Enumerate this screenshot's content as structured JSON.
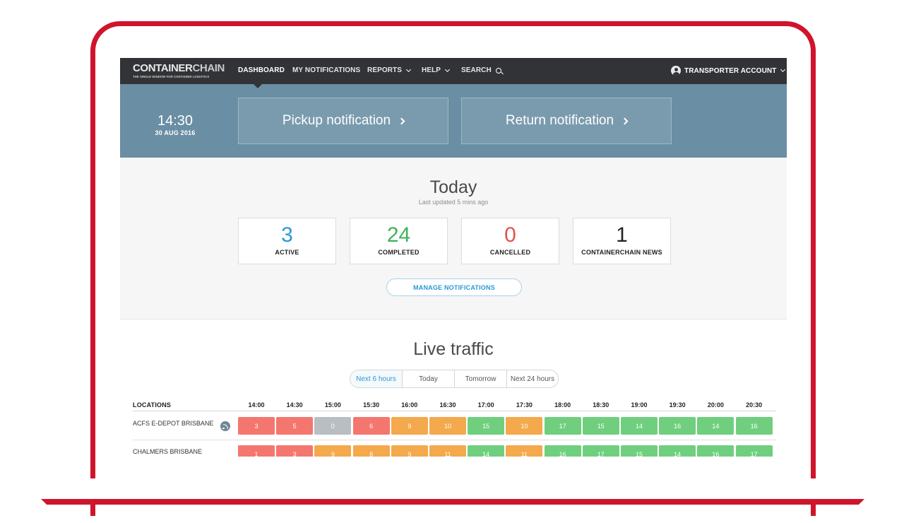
{
  "nav": {
    "logo_main": "CONTAINERCHAIN",
    "logo_main_a": "CONTAINER",
    "logo_main_b": "CHAIN",
    "logo_tagline": "THE SINGLE WINDOW FOR CONTAINER LOGISTICS",
    "items": [
      {
        "label": "DASHBOARD",
        "active": true
      },
      {
        "label": "MY NOTIFICATIONS"
      },
      {
        "label": "REPORTS",
        "icon": "chevron-down-icon"
      },
      {
        "label": "HELP",
        "icon": "chevron-down-icon"
      },
      {
        "label": "SEARCH",
        "icon": "search-icon"
      }
    ],
    "account": {
      "label": "TRANSPORTER ACCOUNT",
      "icon": "user-icon"
    }
  },
  "hero": {
    "time": "14:30",
    "date": "30 AUG 2016",
    "pickup_label": "Pickup notification",
    "return_label": "Return notification"
  },
  "today": {
    "title": "Today",
    "subtitle": "Last updated 5 mins ago",
    "stats": [
      {
        "value": "3",
        "label": "ACTIVE",
        "color": "#2b98d4"
      },
      {
        "value": "24",
        "label": "COMPLETED",
        "color": "#3db35b"
      },
      {
        "value": "0",
        "label": "CANCELLED",
        "color": "#e2534b"
      },
      {
        "value": "1",
        "label": "CONTAINERCHAIN NEWS",
        "color": "#222222"
      }
    ],
    "manage_label": "MANAGE NOTIFICATIONS"
  },
  "traffic": {
    "title": "Live traffic",
    "tabs": [
      "Next 6 hours",
      "Today",
      "Tomorrow",
      "Next 24 hours"
    ],
    "selected_tab": "Next 6 hours",
    "locations_header": "LOCATIONS",
    "times": [
      "14:00",
      "14:30",
      "15:00",
      "15:30",
      "16:00",
      "16:30",
      "17:00",
      "17:30",
      "18:00",
      "18:30",
      "19:00",
      "19:30",
      "20:00",
      "20:30"
    ],
    "rows": [
      {
        "location": "ACFS E-DEPOT BRISBANE",
        "icon": "rss-icon",
        "cells": [
          {
            "value": "3",
            "status": "red"
          },
          {
            "value": "5",
            "status": "red"
          },
          {
            "value": "0",
            "status": "gray"
          },
          {
            "value": "6",
            "status": "red"
          },
          {
            "value": "9",
            "status": "orange"
          },
          {
            "value": "10",
            "status": "orange"
          },
          {
            "value": "15",
            "status": "green"
          },
          {
            "value": "10",
            "status": "orange"
          },
          {
            "value": "17",
            "status": "green"
          },
          {
            "value": "15",
            "status": "green"
          },
          {
            "value": "14",
            "status": "green"
          },
          {
            "value": "16",
            "status": "green"
          },
          {
            "value": "14",
            "status": "green"
          },
          {
            "value": "16",
            "status": "green"
          }
        ]
      },
      {
        "location": "CHALMERS BRISBANE",
        "cells": [
          {
            "value": "1",
            "status": "red"
          },
          {
            "value": "3",
            "status": "red"
          },
          {
            "value": "9",
            "status": "orange"
          },
          {
            "value": "8",
            "status": "orange"
          },
          {
            "value": "9",
            "status": "orange"
          },
          {
            "value": "11",
            "status": "orange"
          },
          {
            "value": "14",
            "status": "green"
          },
          {
            "value": "11",
            "status": "orange"
          },
          {
            "value": "16",
            "status": "green"
          },
          {
            "value": "17",
            "status": "green"
          },
          {
            "value": "15",
            "status": "green"
          },
          {
            "value": "14",
            "status": "green"
          },
          {
            "value": "16",
            "status": "green"
          },
          {
            "value": "17",
            "status": "green"
          }
        ]
      }
    ]
  },
  "colors": {
    "brand_red": "#d0142c",
    "nav_bg": "#323336",
    "hero_bg": "#6a8ea3",
    "accent_blue": "#2b98d4"
  }
}
